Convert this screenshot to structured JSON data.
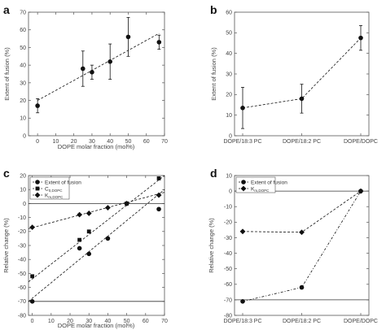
{
  "chart_data": [
    {
      "panel": "a",
      "type": "scatter",
      "xlabel": "DOPE molar fraction (mol%)",
      "ylabel": "Extent of fusion (%)",
      "xlim": [
        -5,
        70
      ],
      "ylim": [
        0,
        70
      ],
      "xticks": [
        0,
        10,
        20,
        30,
        40,
        50,
        60,
        70
      ],
      "yticks": [
        0,
        10,
        20,
        30,
        40,
        50,
        60,
        70
      ],
      "x_ticklabels": [
        "0",
        "10",
        "20",
        "30",
        "40",
        "50",
        "60",
        "70"
      ],
      "y_ticklabels": [
        "0",
        "10",
        "20",
        "30",
        "40",
        "50",
        "60",
        "70"
      ],
      "series": [
        {
          "marker": "circle",
          "line": "none",
          "x": [
            0,
            25,
            30,
            40,
            50,
            67
          ],
          "y": [
            17,
            38,
            36,
            42,
            56,
            53
          ],
          "yerr": [
            4,
            10,
            4,
            10,
            11,
            4
          ]
        },
        {
          "marker": "none",
          "line": "dashed",
          "x": [
            0,
            67
          ],
          "y": [
            20,
            58
          ]
        }
      ],
      "grid": false
    },
    {
      "panel": "b",
      "type": "line",
      "xlabel": "",
      "ylabel": "Extent of fusion (%)",
      "categories": [
        "DOPE/18:3 PC",
        "DOPE/18:2 PC",
        "DOPE/DOPC"
      ],
      "ylim": [
        0,
        60
      ],
      "yticks": [
        0,
        10,
        20,
        30,
        40,
        50,
        60
      ],
      "y_ticklabels": [
        "0",
        "10",
        "20",
        "30",
        "40",
        "50",
        "60"
      ],
      "series": [
        {
          "marker": "circle",
          "line": "dashed",
          "values": [
            13.5,
            18,
            47.5
          ],
          "yerr": [
            10,
            7,
            6
          ]
        }
      ],
      "grid": false
    },
    {
      "panel": "c",
      "type": "scatter",
      "xlabel": "DOPE molar fraction (mol%)",
      "ylabel": "Relative change (%)",
      "xlim": [
        -2,
        70
      ],
      "ylim": [
        -80,
        20
      ],
      "xticks": [
        0,
        10,
        20,
        30,
        40,
        50,
        60,
        70
      ],
      "yticks": [
        -80,
        -70,
        -60,
        -50,
        -40,
        -30,
        -20,
        -10,
        0,
        10,
        20
      ],
      "x_ticklabels": [
        "0",
        "10",
        "20",
        "30",
        "40",
        "50",
        "60",
        "70"
      ],
      "y_ticklabels": [
        "-80",
        "-70",
        "-60",
        "-50",
        "-40",
        "-30",
        "-20",
        "-10",
        "0",
        "10",
        "20"
      ],
      "reference_lines": [
        0,
        -70
      ],
      "legend_position": "top-left",
      "series": [
        {
          "name": "Extent of fusion",
          "marker": "circle",
          "x": [
            0,
            25,
            30,
            40,
            50,
            67
          ],
          "y": [
            -70,
            -32,
            -36,
            -25,
            0,
            -4
          ]
        },
        {
          "name": "C",
          "name_subscript": "0,DOPC",
          "marker": "square",
          "x": [
            0,
            25,
            30,
            50,
            67
          ],
          "y": [
            -52,
            -26,
            -20,
            0,
            18
          ]
        },
        {
          "name": "K",
          "name_subscript": "m,DOPC",
          "marker": "diamond",
          "x": [
            0,
            25,
            30,
            40,
            50,
            67
          ],
          "y": [
            -17,
            -8,
            -7,
            -3,
            0,
            6
          ]
        }
      ],
      "fit_lines": [
        {
          "x": [
            -2,
            70
          ],
          "y": [
            -70,
            10
          ]
        },
        {
          "x": [
            -2,
            70
          ],
          "y": [
            -56,
            20
          ]
        },
        {
          "x": [
            -2,
            70
          ],
          "y": [
            -18,
            8
          ]
        }
      ],
      "grid": false
    },
    {
      "panel": "d",
      "type": "line",
      "xlabel": "",
      "ylabel": "Relative change (%)",
      "categories": [
        "DOPE/18:3 PC",
        "DOPE/18:2 PC",
        "DOPE/DOPC"
      ],
      "ylim": [
        -80,
        10
      ],
      "yticks": [
        -80,
        -70,
        -60,
        -50,
        -40,
        -30,
        -20,
        -10,
        0,
        10
      ],
      "y_ticklabels": [
        "-80",
        "-70",
        "-60",
        "-50",
        "-40",
        "-30",
        "-20",
        "-10",
        "0",
        "10"
      ],
      "reference_lines": [
        0,
        -70
      ],
      "legend_position": "top-left",
      "series": [
        {
          "name": "Extent of fusion",
          "marker": "circle",
          "line": "dashdot",
          "values": [
            -71,
            -62,
            0
          ]
        },
        {
          "name": "K",
          "name_subscript": "m,DOPC",
          "marker": "diamond",
          "line": "dashed",
          "values": [
            -26,
            -26.5,
            0
          ]
        }
      ],
      "grid": false
    }
  ],
  "panel_letters": [
    "a",
    "b",
    "c",
    "d"
  ],
  "colors": {
    "ink": "#111111",
    "axis": "#555555",
    "background": "#ffffff"
  }
}
